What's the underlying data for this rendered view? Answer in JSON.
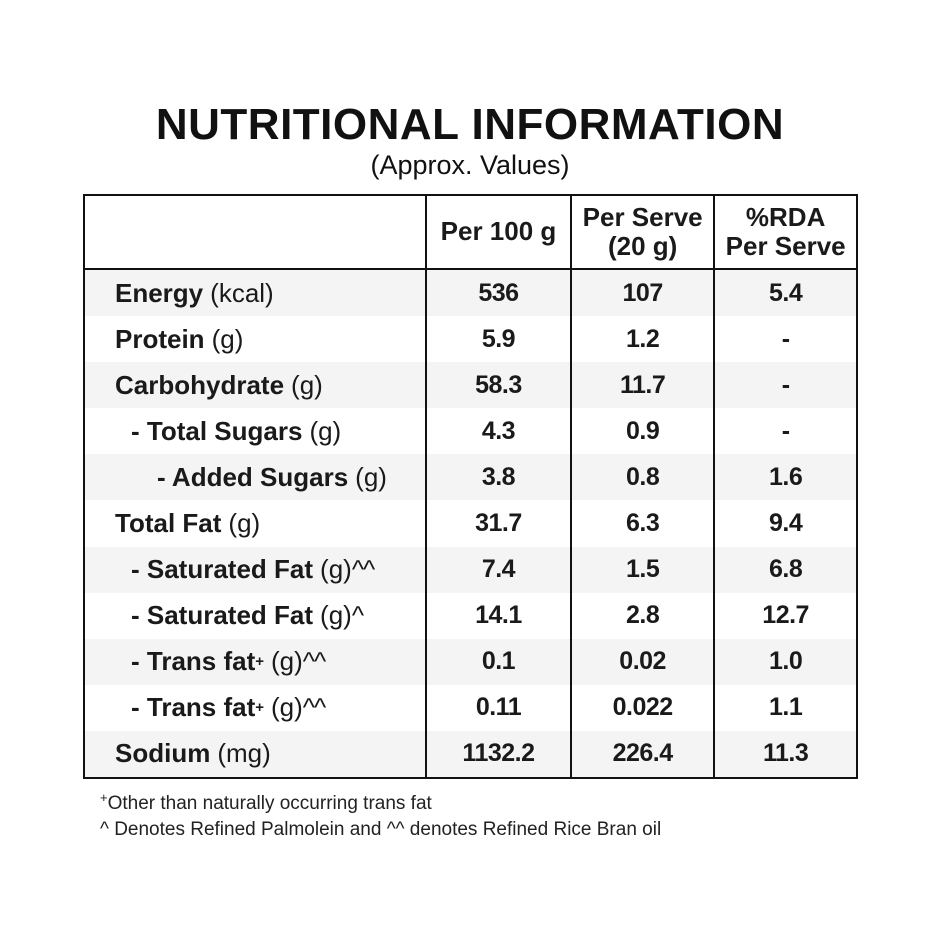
{
  "title": "NUTRITIONAL INFORMATION",
  "subtitle": "(Approx. Values)",
  "colors": {
    "border": "#111111",
    "row_shade": "#f4f4f4",
    "text": "#1a1a1a",
    "background": "#ffffff"
  },
  "table": {
    "header": {
      "col0": "",
      "col1": "Per 100 g",
      "col2_line1": "Per Serve",
      "col2_line2": "(20 g)",
      "col3_line1": "%RDA",
      "col3_line2": "Per Serve"
    },
    "rows": [
      {
        "label": "Energy",
        "label_sup": "",
        "unit": "(kcal)",
        "unit_sup": "",
        "indent": 0,
        "per_100g": "536",
        "per_serve": "107",
        "rda": "5.4"
      },
      {
        "label": "Protein",
        "label_sup": "",
        "unit": "(g)",
        "unit_sup": "",
        "indent": 0,
        "per_100g": "5.9",
        "per_serve": "1.2",
        "rda": "-"
      },
      {
        "label": "Carbohydrate",
        "label_sup": "",
        "unit": "(g)",
        "unit_sup": "",
        "indent": 0,
        "per_100g": "58.3",
        "per_serve": "11.7",
        "rda": "-"
      },
      {
        "label": "- Total Sugars",
        "label_sup": "",
        "unit": "(g)",
        "unit_sup": "",
        "indent": 1,
        "per_100g": "4.3",
        "per_serve": "0.9",
        "rda": "-"
      },
      {
        "label": "- Added Sugars",
        "label_sup": "",
        "unit": "(g)",
        "unit_sup": "",
        "indent": 2,
        "per_100g": "3.8",
        "per_serve": "0.8",
        "rda": "1.6"
      },
      {
        "label": "Total Fat",
        "label_sup": "",
        "unit": "(g)",
        "unit_sup": "",
        "indent": 0,
        "per_100g": "31.7",
        "per_serve": "6.3",
        "rda": "9.4"
      },
      {
        "label": "- Saturated Fat",
        "label_sup": "",
        "unit": "(g)",
        "unit_sup": "^^",
        "indent": 1,
        "per_100g": "7.4",
        "per_serve": "1.5",
        "rda": "6.8"
      },
      {
        "label": "- Saturated Fat",
        "label_sup": "",
        "unit": "(g)",
        "unit_sup": "^",
        "indent": 1,
        "per_100g": "14.1",
        "per_serve": "2.8",
        "rda": "12.7"
      },
      {
        "label": "- Trans fat",
        "label_sup": "+",
        "unit": "(g)",
        "unit_sup": "^^",
        "indent": 1,
        "per_100g": "0.1",
        "per_serve": "0.02",
        "rda": "1.0"
      },
      {
        "label": "- Trans fat",
        "label_sup": "+",
        "unit": "(g)",
        "unit_sup": "^^",
        "indent": 1,
        "per_100g": "0.11",
        "per_serve": "0.022",
        "rda": "1.1"
      },
      {
        "label": "Sodium",
        "label_sup": "",
        "unit": "(mg)",
        "unit_sup": "",
        "indent": 0,
        "per_100g": "1132.2",
        "per_serve": "226.4",
        "rda": "11.3"
      }
    ]
  },
  "footnotes": [
    {
      "sup": "+",
      "text": "Other than naturally occurring trans fat"
    },
    {
      "sup": "",
      "text": "^ Denotes Refined Palmolein and ^^ denotes Refined Rice Bran oil"
    }
  ]
}
